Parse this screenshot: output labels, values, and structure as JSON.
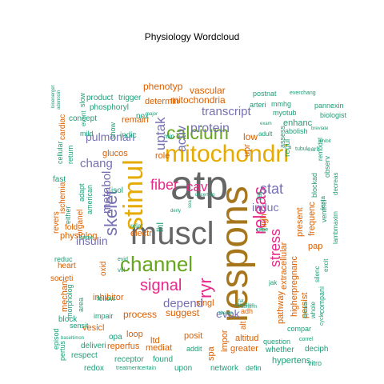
{
  "title": "Physiology  Wordcloud",
  "palette": {
    "teal": "#1b9e77",
    "orange": "#d95f02",
    "purple": "#7570b3",
    "pink": "#e7298a",
    "green": "#66a61e",
    "yellow": "#e6ab02",
    "brown": "#a6761d",
    "gray": "#666666"
  },
  "words": [
    {
      "text": "atp",
      "color": "gray"
    },
    {
      "text": "muscl",
      "color": "gray"
    },
    {
      "text": "respons",
      "color": "brown"
    },
    {
      "text": "mitochondri",
      "color": "yellow"
    },
    {
      "text": "stimul",
      "color": "yellow"
    },
    {
      "text": "channel",
      "color": "green"
    },
    {
      "text": "calcium",
      "color": "green"
    },
    {
      "text": "signal",
      "color": "pink"
    },
    {
      "text": "releas",
      "color": "pink"
    },
    {
      "text": "ryr",
      "color": "pink"
    },
    {
      "text": "skelet",
      "color": "purple"
    },
    {
      "text": "fiber",
      "color": "pink"
    },
    {
      "text": "stress",
      "color": "pink"
    },
    {
      "text": "stat",
      "color": "purple"
    },
    {
      "text": "cav",
      "color": "pink"
    },
    {
      "text": "protein",
      "color": "purple"
    },
    {
      "text": "transcript",
      "color": "purple"
    },
    {
      "text": "depend",
      "color": "purple"
    },
    {
      "text": "induc",
      "color": "purple"
    },
    {
      "text": "uptak",
      "color": "purple"
    },
    {
      "text": "activ",
      "color": "purple"
    },
    {
      "text": "insulin",
      "color": "purple"
    },
    {
      "text": "pulmonari",
      "color": "purple"
    },
    {
      "text": "metabol",
      "color": "purple"
    },
    {
      "text": "chang",
      "color": "purple"
    },
    {
      "text": "evok",
      "color": "purple"
    },
    {
      "text": "phenotyp",
      "color": "orange"
    },
    {
      "text": "vascular",
      "color": "orange"
    },
    {
      "text": "mitochondria",
      "color": "orange"
    },
    {
      "text": "determin",
      "color": "orange"
    },
    {
      "text": "remain",
      "color": "orange"
    },
    {
      "text": "glucos",
      "color": "orange"
    },
    {
      "text": "role",
      "color": "orange"
    },
    {
      "text": "physiolog",
      "color": "orange"
    },
    {
      "text": "electr",
      "color": "orange"
    },
    {
      "text": "inhibitor",
      "color": "orange"
    },
    {
      "text": "process",
      "color": "orange"
    },
    {
      "text": "suggest",
      "color": "orange"
    },
    {
      "text": "singl",
      "color": "orange"
    },
    {
      "text": "low",
      "color": "orange"
    },
    {
      "text": "upr",
      "color": "orange"
    },
    {
      "text": "high",
      "color": "orange"
    },
    {
      "text": "frequenc",
      "color": "orange"
    },
    {
      "text": "extracellular",
      "color": "orange"
    },
    {
      "text": "pregnanc",
      "color": "orange"
    },
    {
      "text": "present",
      "color": "orange"
    },
    {
      "text": "pap",
      "color": "orange"
    },
    {
      "text": "pathway",
      "color": "orange"
    },
    {
      "text": "persist",
      "color": "orange"
    },
    {
      "text": "higher",
      "color": "orange"
    },
    {
      "text": "enhanc",
      "color": "teal"
    },
    {
      "text": "heart",
      "color": "orange"
    },
    {
      "text": "societi",
      "color": "orange"
    },
    {
      "text": "oxid",
      "color": "orange"
    },
    {
      "text": "fold",
      "color": "orange"
    },
    {
      "text": "revers",
      "color": "orange"
    },
    {
      "text": "ischemia",
      "color": "orange"
    },
    {
      "text": "fast",
      "color": "teal"
    },
    {
      "text": "cardiac",
      "color": "orange"
    },
    {
      "text": "organel",
      "color": "orange"
    },
    {
      "text": "mechan",
      "color": "orange"
    },
    {
      "text": "loop",
      "color": "orange"
    },
    {
      "text": "ltd",
      "color": "orange"
    },
    {
      "text": "mediat",
      "color": "orange"
    },
    {
      "text": "reperfus",
      "color": "orange"
    },
    {
      "text": "vesicl",
      "color": "orange"
    },
    {
      "text": "posit",
      "color": "orange"
    },
    {
      "text": "spa",
      "color": "orange"
    },
    {
      "text": "altitud",
      "color": "orange"
    },
    {
      "text": "greater",
      "color": "orange"
    },
    {
      "text": "hypertens",
      "color": "teal"
    },
    {
      "text": "impor",
      "color": "orange"
    },
    {
      "text": "alt",
      "color": "orange"
    },
    {
      "text": "adh",
      "color": "orange"
    },
    {
      "text": "product",
      "color": "teal"
    },
    {
      "text": "trigger",
      "color": "teal"
    },
    {
      "text": "phosphoryl",
      "color": "teal"
    },
    {
      "text": "concept",
      "color": "teal"
    },
    {
      "text": "nox",
      "color": "teal"
    },
    {
      "text": "indic",
      "color": "teal"
    },
    {
      "text": "mild",
      "color": "teal"
    },
    {
      "text": "event",
      "color": "teal"
    },
    {
      "text": "show",
      "color": "teal"
    },
    {
      "text": "cellular",
      "color": "teal"
    },
    {
      "text": "return",
      "color": "teal"
    },
    {
      "text": "either",
      "color": "teal"
    },
    {
      "text": "adapt",
      "color": "teal"
    },
    {
      "text": "american",
      "color": "teal"
    },
    {
      "text": "isol",
      "color": "teal"
    },
    {
      "text": "lhl",
      "color": "teal"
    },
    {
      "text": "relat",
      "color": "teal"
    },
    {
      "text": "come",
      "color": "teal"
    },
    {
      "text": "reduc",
      "color": "teal"
    },
    {
      "text": "viii",
      "color": "teal"
    },
    {
      "text": "evid",
      "color": "teal"
    },
    {
      "text": "follow",
      "color": "teal"
    },
    {
      "text": "impair",
      "color": "teal"
    },
    {
      "text": "opa",
      "color": "teal"
    },
    {
      "text": "morpholog",
      "color": "teal"
    },
    {
      "text": "area",
      "color": "teal"
    },
    {
      "text": "block",
      "color": "teal"
    },
    {
      "text": "sensit",
      "color": "teal"
    },
    {
      "text": "episod",
      "color": "teal"
    },
    {
      "text": "pertus",
      "color": "teal"
    },
    {
      "text": "respect",
      "color": "teal"
    },
    {
      "text": "redox",
      "color": "teal"
    },
    {
      "text": "deliveri",
      "color": "teal"
    },
    {
      "text": "receptor",
      "color": "teal"
    },
    {
      "text": "found",
      "color": "teal"
    },
    {
      "text": "upon",
      "color": "teal"
    },
    {
      "text": "treatment",
      "color": "teal"
    },
    {
      "text": "certain",
      "color": "teal"
    },
    {
      "text": "addit",
      "color": "teal"
    },
    {
      "text": "network",
      "color": "teal"
    },
    {
      "text": "defin",
      "color": "teal"
    },
    {
      "text": "vitro",
      "color": "teal"
    },
    {
      "text": "whether",
      "color": "teal"
    },
    {
      "text": "question",
      "color": "teal"
    },
    {
      "text": "compar",
      "color": "teal"
    },
    {
      "text": "correl",
      "color": "teal"
    },
    {
      "text": "deciph",
      "color": "teal"
    },
    {
      "text": "compani",
      "color": "teal"
    },
    {
      "text": "whole",
      "color": "teal"
    },
    {
      "text": "excit",
      "color": "teal"
    },
    {
      "text": "silenc",
      "color": "teal"
    },
    {
      "text": "cycle",
      "color": "teal"
    },
    {
      "text": "dynam",
      "color": "teal"
    },
    {
      "text": "jak",
      "color": "teal"
    },
    {
      "text": "rat",
      "color": "teal"
    },
    {
      "text": "cope",
      "color": "teal"
    },
    {
      "text": "lambmaxim",
      "color": "teal"
    },
    {
      "text": "decreas",
      "color": "teal"
    },
    {
      "text": "observ",
      "color": "teal"
    },
    {
      "text": "blockad",
      "color": "teal"
    },
    {
      "text": "remodel",
      "color": "teal"
    },
    {
      "text": "lesta",
      "color": "teal"
    },
    {
      "text": "ventricl",
      "color": "teal"
    },
    {
      "text": "regul",
      "color": "teal"
    },
    {
      "text": "assess",
      "color": "teal"
    },
    {
      "text": "abolish",
      "color": "teal"
    },
    {
      "text": "biologist",
      "color": "teal"
    },
    {
      "text": "pannexin",
      "color": "teal"
    },
    {
      "text": "arteri",
      "color": "teal"
    },
    {
      "text": "mmhg",
      "color": "teal"
    },
    {
      "text": "postnat",
      "color": "teal"
    },
    {
      "text": "everchang",
      "color": "teal"
    },
    {
      "text": "myotub",
      "color": "teal"
    },
    {
      "text": "adult",
      "color": "teal"
    },
    {
      "text": "exam",
      "color": "teal"
    },
    {
      "text": "breviate",
      "color": "teal"
    },
    {
      "text": "tubul",
      "color": "teal"
    },
    {
      "text": "earli",
      "color": "teal"
    },
    {
      "text": "inhibit",
      "color": "teal"
    },
    {
      "text": "major",
      "color": "teal"
    },
    {
      "text": "min",
      "color": "teal"
    },
    {
      "text": "slow",
      "color": "teal"
    },
    {
      "text": "bioenerget",
      "color": "teal"
    },
    {
      "text": "adenosin",
      "color": "teal"
    },
    {
      "text": "uncertain",
      "color": "teal"
    },
    {
      "text": "sea",
      "color": "teal"
    },
    {
      "text": "derly",
      "color": "teal"
    },
    {
      "text": "theme",
      "color": "teal"
    },
    {
      "text": "baseltimon",
      "color": "teal"
    },
    {
      "text": "abnorm",
      "color": "teal"
    },
    {
      "text": "alteration",
      "color": "teal"
    },
    {
      "text": "fat",
      "color": "teal"
    }
  ]
}
